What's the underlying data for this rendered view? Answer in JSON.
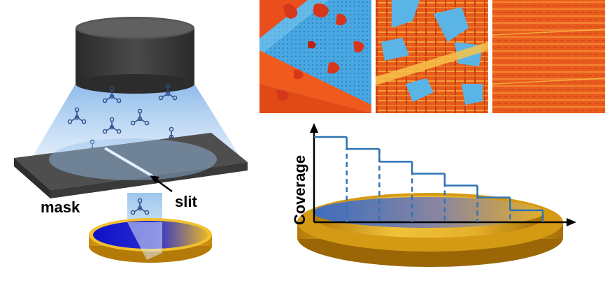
{
  "labels": {
    "mask": "mask",
    "slit": "slit",
    "y_axis": "Coverage"
  },
  "icons": {
    "source": "cylindrical-evaporation-source-icon",
    "molecule": "tri-branched-molecule-icon",
    "substrate": "gold-substrate-disk-icon"
  },
  "colors": {
    "source_body": "#3a3a3a",
    "beam": "#9fc7ee",
    "mask_plate": "#4a4a4a",
    "substrate_gold": "#e6ad16",
    "deposit_blue": "#1f2cc8",
    "step_line": "#2e74b5",
    "stm_blue": "#3fa7e0",
    "stm_orange": "#e8501a"
  },
  "stm_images": [
    {
      "name": "stm-image-low-coverage",
      "coverage": "low"
    },
    {
      "name": "stm-image-medium-coverage",
      "coverage": "medium"
    },
    {
      "name": "stm-image-full-coverage",
      "coverage": "full"
    }
  ],
  "chart_data": {
    "type": "line",
    "title": "",
    "xlabel": "",
    "ylabel": "Coverage",
    "y_ticks": "none",
    "series": [
      {
        "values": [
          1.0,
          0.86,
          0.71,
          0.57,
          0.43,
          0.29,
          0.14
        ]
      }
    ]
  }
}
